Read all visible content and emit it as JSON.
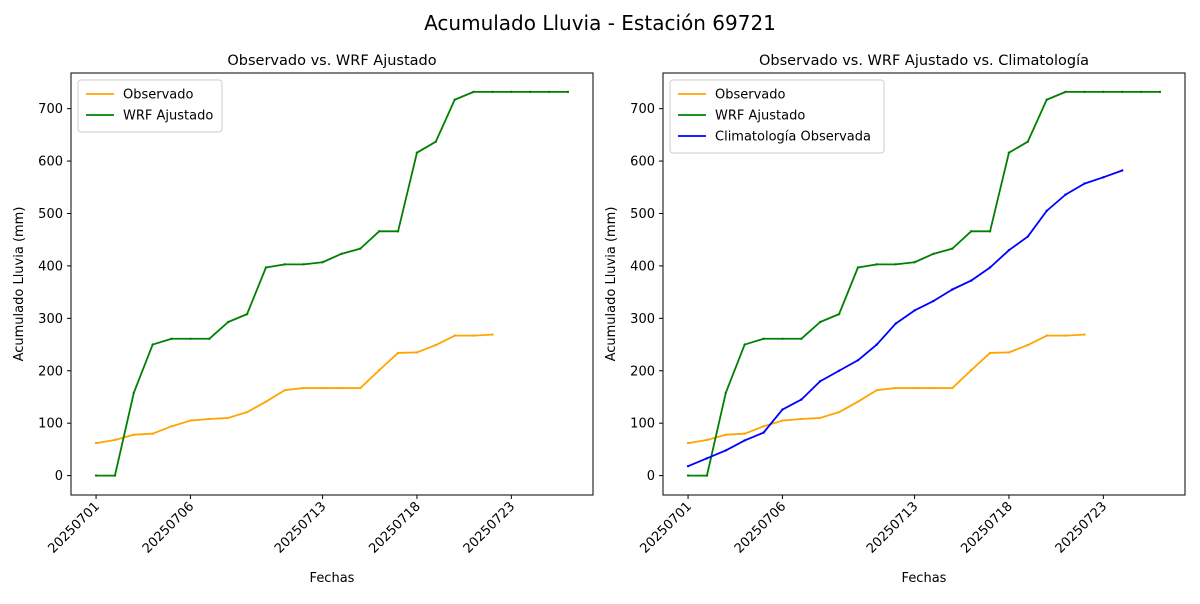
{
  "figure": {
    "suptitle": "Acumulado Lluvia - Estación 69721"
  },
  "colors": {
    "observado": "#ffa500",
    "wrf": "#008000",
    "climatologia": "#0000ff"
  },
  "chart_data": [
    {
      "type": "line",
      "title": "Observado vs. WRF Ajustado",
      "xlabel": "Fechas",
      "ylabel": "Acumulado Lluvia (mm)",
      "x": [
        "20250701",
        "20250702",
        "20250703",
        "20250704",
        "20250705",
        "20250706",
        "20250707",
        "20250708",
        "20250709",
        "20250710",
        "20250711",
        "20250712",
        "20250713",
        "20250714",
        "20250715",
        "20250716",
        "20250717",
        "20250718",
        "20250719",
        "20250720",
        "20250721",
        "20250722",
        "20250723",
        "20250724",
        "20250725",
        "20250726"
      ],
      "xtick_labels": [
        "20250701",
        "20250706",
        "20250713",
        "20250718",
        "20250723"
      ],
      "ylim": [
        -37,
        768
      ],
      "yticks": [
        0,
        100,
        200,
        300,
        400,
        500,
        600,
        700
      ],
      "legend": "top-left",
      "grid": false,
      "series": [
        {
          "name": "Observado",
          "color_key": "observado",
          "values": [
            62,
            68,
            78,
            80,
            94,
            105,
            108,
            110,
            121,
            141,
            163,
            167,
            167,
            167,
            167,
            201,
            234,
            235,
            249,
            267,
            267,
            269,
            null,
            null,
            null,
            null
          ]
        },
        {
          "name": "WRF Ajustado",
          "color_key": "wrf",
          "values": [
            0,
            0,
            158,
            250,
            261,
            261,
            261,
            293,
            308,
            397,
            403,
            403,
            407,
            423,
            433,
            466,
            466,
            616,
            637,
            717,
            732,
            732,
            732,
            732,
            732,
            732
          ]
        }
      ]
    },
    {
      "type": "line",
      "title": "Observado vs. WRF Ajustado vs. Climatología",
      "xlabel": "Fechas",
      "ylabel": "Acumulado Lluvia (mm)",
      "x": [
        "20250701",
        "20250702",
        "20250703",
        "20250704",
        "20250705",
        "20250706",
        "20250707",
        "20250708",
        "20250709",
        "20250710",
        "20250711",
        "20250712",
        "20250713",
        "20250714",
        "20250715",
        "20250716",
        "20250717",
        "20250718",
        "20250719",
        "20250720",
        "20250721",
        "20250722",
        "20250723",
        "20250724",
        "20250725",
        "20250726"
      ],
      "xtick_labels": [
        "20250701",
        "20250706",
        "20250713",
        "20250718",
        "20250723"
      ],
      "ylim": [
        -37,
        768
      ],
      "yticks": [
        0,
        100,
        200,
        300,
        400,
        500,
        600,
        700
      ],
      "legend": "top-left",
      "grid": false,
      "series": [
        {
          "name": "Observado",
          "color_key": "observado",
          "values": [
            62,
            68,
            78,
            80,
            94,
            105,
            108,
            110,
            121,
            141,
            163,
            167,
            167,
            167,
            167,
            201,
            234,
            235,
            249,
            267,
            267,
            269,
            null,
            null,
            null,
            null
          ]
        },
        {
          "name": "WRF Ajustado",
          "color_key": "wrf",
          "values": [
            0,
            0,
            158,
            250,
            261,
            261,
            261,
            293,
            308,
            397,
            403,
            403,
            407,
            423,
            433,
            466,
            466,
            616,
            637,
            717,
            732,
            732,
            732,
            732,
            732,
            732
          ]
        },
        {
          "name": "Climatología Observada",
          "color_key": "climatologia",
          "values": [
            18,
            33,
            48,
            67,
            82,
            126,
            145,
            180,
            200,
            220,
            250,
            290,
            315,
            333,
            355,
            372,
            397,
            430,
            456,
            505,
            536,
            557,
            569,
            582,
            null,
            null
          ]
        }
      ]
    }
  ]
}
